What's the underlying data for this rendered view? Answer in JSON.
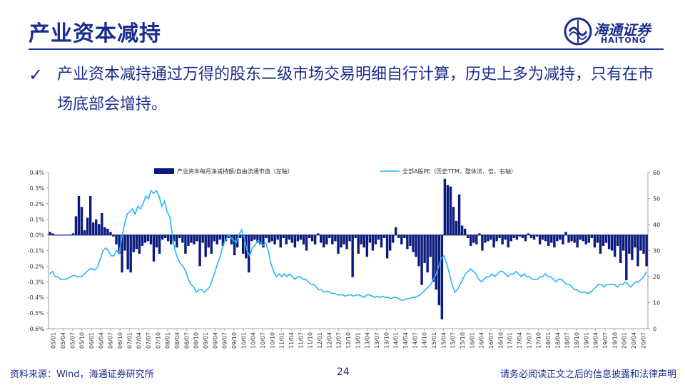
{
  "header": {
    "title": "产业资本减持",
    "logo_cn": "海通证券",
    "logo_en": "HAITONG",
    "brand_color": "#1a2d8f"
  },
  "bullet": {
    "icon": "check-icon",
    "text": "产业资本减持通过万得的股东二级市场交易明细自行计算，历史上多为减持，只有在市场底部会增持。"
  },
  "footer": {
    "source": "资料来源：Wind，海通证券研究所",
    "page": "24",
    "disclaimer": "请务必阅读正文之后的信息披露和法律声明"
  },
  "chart_data": {
    "type": "bar+line",
    "x_tick_labels": [
      "05/01",
      "05/04",
      "05/07",
      "05/10",
      "06/01",
      "06/04",
      "06/07",
      "06/10",
      "07/01",
      "07/04",
      "07/07",
      "07/10",
      "08/01",
      "08/04",
      "08/07",
      "08/10",
      "09/01",
      "09/04",
      "09/07",
      "09/10",
      "10/01",
      "10/04",
      "10/07",
      "10/10",
      "11/01",
      "11/04",
      "11/07",
      "11/10",
      "12/01",
      "12/04",
      "12/07",
      "12/10",
      "13/01",
      "13/04",
      "13/07",
      "13/10",
      "14/01",
      "14/04",
      "14/07",
      "14/10",
      "15/01",
      "15/04",
      "15/07",
      "15/10",
      "16/01",
      "16/04",
      "16/07",
      "16/10",
      "17/01",
      "17/04",
      "17/07",
      "17/10",
      "18/01",
      "18/04",
      "18/07",
      "18/10",
      "19/01",
      "19/04",
      "19/07",
      "19/10",
      "20/01",
      "20/04",
      "20/07"
    ],
    "y_left": {
      "min": -0.6,
      "max": 0.4,
      "step": 0.1,
      "tick_labels": [
        "0.4%",
        "0.3%",
        "0.2%",
        "0.1%",
        "0.0%",
        "-0.1%",
        "-0.2%",
        "-0.3%",
        "-0.4%",
        "-0.5%",
        "-0.6%"
      ]
    },
    "y_right": {
      "min": 0,
      "max": 60,
      "step": 10,
      "tick_labels": [
        "60",
        "50",
        "40",
        "30",
        "20",
        "10",
        "0"
      ]
    },
    "series": [
      {
        "name": "产业资本每月净减持额/自由流通市值（左轴）",
        "kind": "bar",
        "axis": "left",
        "color": "#0d1b7e",
        "values": [
          0.02,
          0.01,
          0,
          0,
          0,
          0,
          0,
          0,
          0.01,
          0.12,
          0.25,
          0.18,
          0.03,
          0.11,
          0.25,
          0.08,
          0.1,
          0.07,
          0.14,
          0.05,
          0.04,
          0.02,
          -0.01,
          -0.06,
          -0.12,
          -0.24,
          -0.1,
          -0.22,
          -0.24,
          -0.11,
          -0.09,
          -0.12,
          -0.07,
          -0.05,
          -0.04,
          -0.06,
          -0.17,
          -0.08,
          -0.12,
          -0.03,
          -0.02,
          -0.04,
          -0.06,
          -0.04,
          -0.08,
          -0.02,
          -0.05,
          -0.12,
          -0.07,
          -0.05,
          -0.06,
          -0.04,
          -0.2,
          -0.05,
          -0.14,
          -0.08,
          -0.12,
          -0.04,
          -0.06,
          -0.03,
          -0.07,
          -0.04,
          -0.02,
          -0.06,
          -0.13,
          -0.08,
          -0.02,
          -0.12,
          -0.15,
          -0.24,
          -0.04,
          -0.03,
          -0.05,
          -0.06,
          -0.08,
          -0.02,
          -0.05,
          -0.04,
          -0.06,
          -0.03,
          -0.08,
          -0.02,
          -0.06,
          -0.03,
          -0.05,
          -0.08,
          -0.04,
          -0.03,
          -0.06,
          -0.1,
          -0.02,
          -0.04,
          -0.06,
          0.01,
          -0.05,
          -0.08,
          -0.06,
          -0.02,
          -0.06,
          -0.04,
          -0.12,
          -0.08,
          -0.06,
          -0.09,
          -0.04,
          -0.27,
          -0.02,
          -0.12,
          -0.06,
          -0.08,
          -0.14,
          -0.05,
          -0.1,
          -0.06,
          -0.03,
          -0.08,
          -0.02,
          -0.15,
          -0.1,
          -0.05,
          0.05,
          -0.02,
          -0.06,
          -0.02,
          -0.09,
          -0.07,
          -0.11,
          -0.14,
          -0.2,
          -0.32,
          -0.18,
          -0.24,
          -0.14,
          -0.3,
          -0.35,
          -0.45,
          -0.54,
          0.36,
          0.32,
          0.31,
          0.18,
          0.09,
          0.26,
          0.06,
          0.04,
          -0.02,
          -0.07,
          -0.05,
          -0.06,
          0.01,
          -0.1,
          -0.05,
          -0.04,
          -0.03,
          -0.08,
          -0.04,
          -0.02,
          -0.06,
          -0.03,
          -0.08,
          -0.04,
          -0.02,
          -0.03,
          -0.01,
          -0.02,
          -0.04,
          0.01,
          -0.02,
          -0.03,
          -0.01,
          -0.06,
          -0.03,
          -0.04,
          -0.07,
          -0.05,
          -0.08,
          -0.04,
          -0.03,
          -0.06,
          0.02,
          -0.05,
          -0.04,
          -0.05,
          -0.08,
          -0.03,
          -0.04,
          -0.06,
          -0.05,
          -0.02,
          -0.08,
          -0.05,
          -0.12,
          -0.07,
          -0.05,
          -0.09,
          -0.1,
          -0.14,
          -0.07,
          -0.18,
          -0.1,
          -0.29,
          -0.12,
          -0.16,
          -0.08,
          -0.2,
          -0.1,
          -0.12,
          -0.2
        ]
      },
      {
        "name": "全部A股PE（历史TTM，整体法，倍，右轴）",
        "kind": "line",
        "axis": "right",
        "color": "#29b6f6",
        "values": [
          21,
          22,
          20,
          20,
          19,
          19,
          19,
          19.5,
          20,
          20.5,
          20,
          20,
          20,
          21,
          22,
          23,
          23,
          22.5,
          24,
          27,
          30,
          31,
          30,
          28,
          28,
          30,
          29,
          35,
          40,
          44,
          45,
          46,
          44,
          47,
          46,
          48,
          51,
          50,
          53,
          52,
          53,
          51,
          47,
          49,
          45,
          43,
          36,
          30,
          27,
          25,
          24,
          22,
          19,
          17,
          16,
          14,
          15,
          15,
          14,
          15,
          16,
          19,
          22,
          25,
          28,
          32,
          34,
          36,
          35,
          34,
          33,
          36,
          38,
          35,
          30,
          28,
          31,
          32,
          34,
          33,
          32,
          33,
          30,
          25,
          22,
          20,
          21,
          20,
          21,
          20,
          21,
          20,
          19,
          20,
          20,
          19,
          19,
          18,
          17,
          17,
          16,
          15,
          15,
          14,
          14.5,
          14,
          13.5,
          13.5,
          13,
          13,
          13,
          12.5,
          13,
          13,
          12.5,
          13,
          13,
          12.5,
          12,
          13,
          13,
          12.5,
          12,
          12.5,
          12,
          12.5,
          12,
          12,
          11.5,
          12,
          12,
          11.5,
          11,
          11,
          11.5,
          11.5,
          12,
          12,
          12.5,
          13,
          14,
          15,
          16,
          17,
          19,
          21,
          24,
          27,
          28,
          25,
          21,
          17,
          14,
          15,
          17,
          19,
          21,
          22,
          23,
          22,
          21,
          19,
          18,
          19,
          20,
          20,
          21,
          20,
          21,
          22,
          22,
          21,
          20,
          21,
          21,
          22,
          21,
          20,
          21,
          20,
          20,
          19,
          19,
          19,
          20,
          20,
          21,
          20,
          20,
          19,
          18,
          19,
          19,
          18,
          17,
          17,
          16,
          15,
          15,
          14,
          14,
          14,
          13.5,
          14,
          15,
          16,
          17,
          17,
          16,
          17,
          17,
          17,
          17,
          16,
          17,
          17,
          18,
          17,
          16,
          17,
          18,
          18,
          19,
          20,
          22
        ]
      }
    ],
    "legend_position": "top",
    "grid": false
  }
}
